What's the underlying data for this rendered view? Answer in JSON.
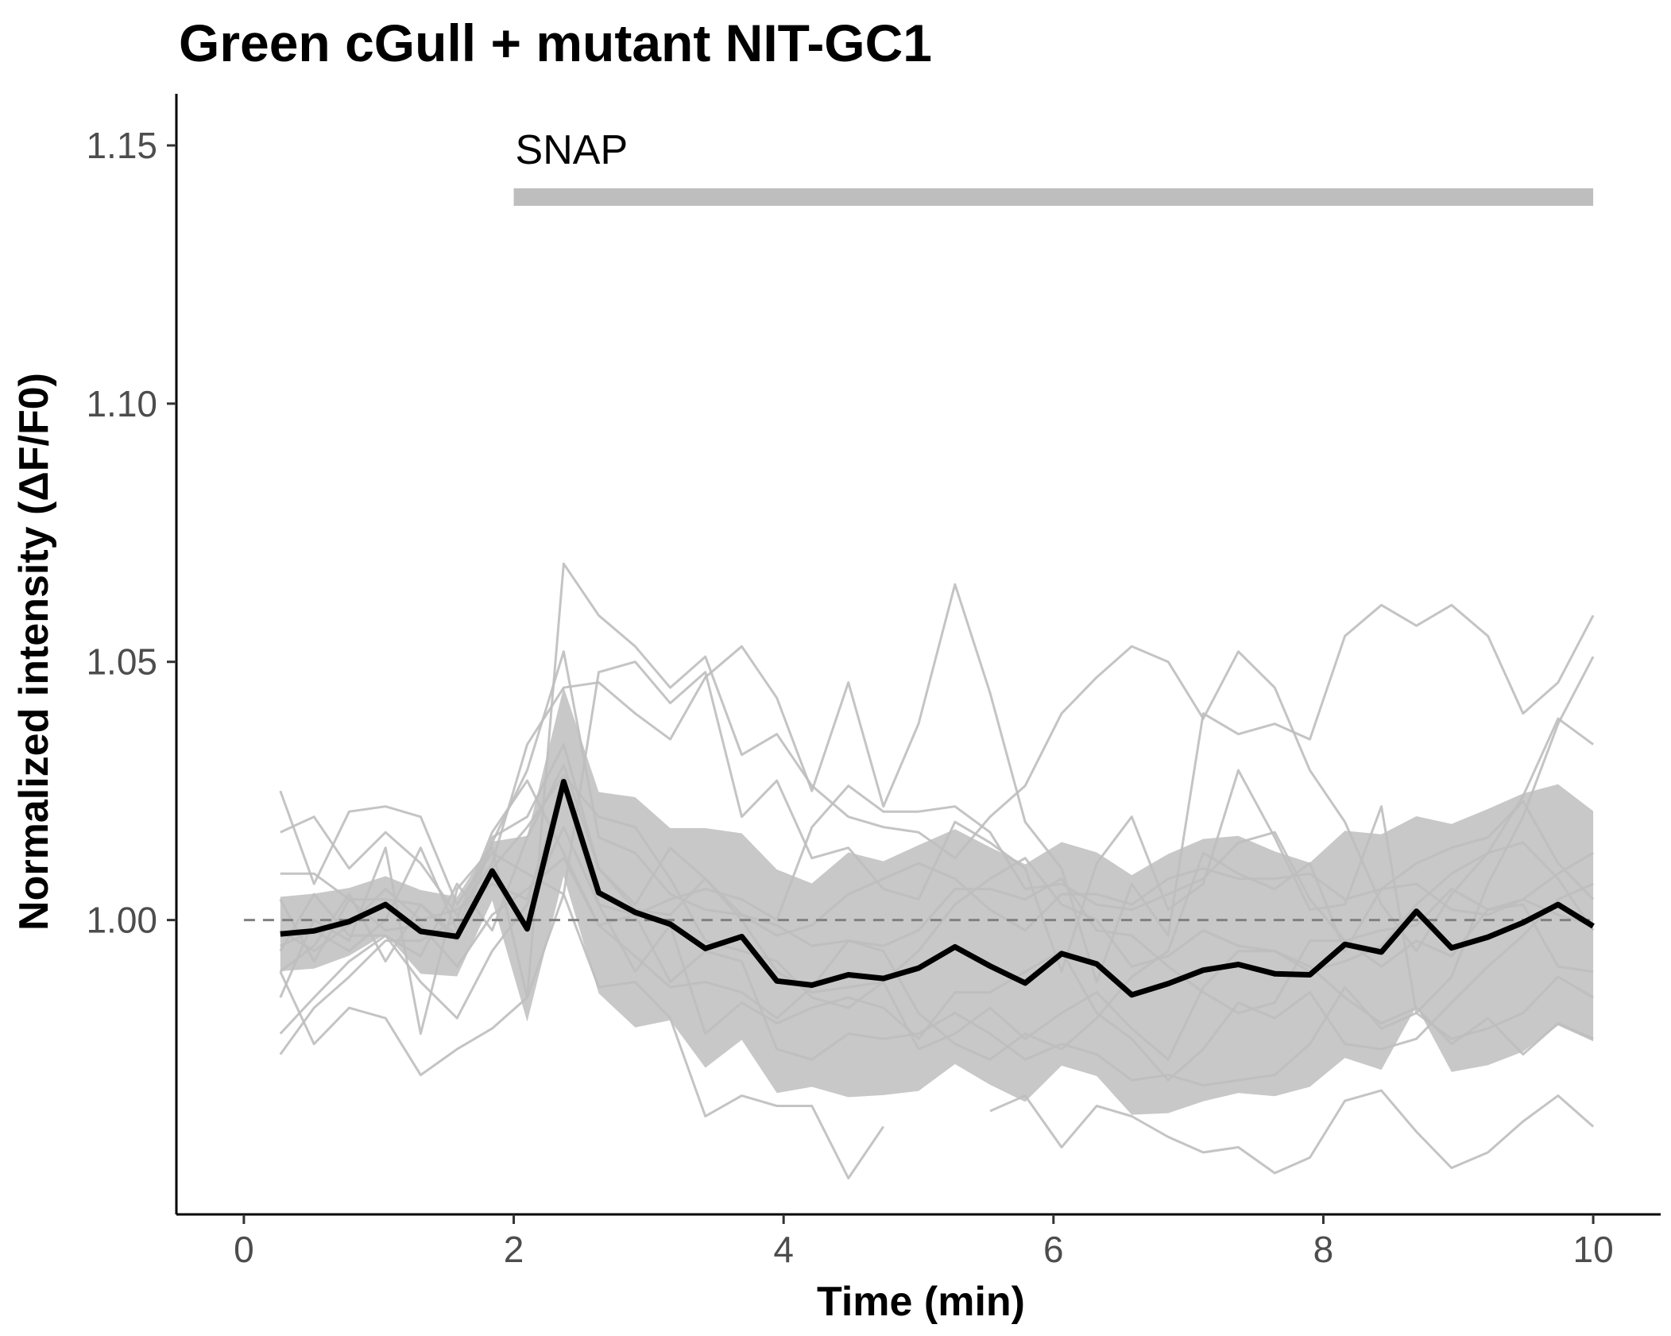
{
  "chart_data": {
    "type": "line",
    "title": "Green cGull + mutant NIT-GC1",
    "xlabel": "Time (min)",
    "ylabel": "Normalized intensity (ΔF/F0)",
    "xlim": [
      -0.5,
      10.5
    ],
    "ylim": [
      0.943,
      1.16
    ],
    "xticks": [
      0,
      2,
      4,
      6,
      8,
      10
    ],
    "xtick_labels": [
      "0",
      "2",
      "4",
      "6",
      "8",
      "10"
    ],
    "yticks": [
      1.0,
      1.05,
      1.1,
      1.15
    ],
    "ytick_labels": [
      "1.00",
      "1.05",
      "1.10",
      "1.15"
    ],
    "grid": false,
    "legend": "none",
    "reference_line": {
      "y": 1.0,
      "style": "dashed",
      "color": "#808080"
    },
    "annotation": {
      "label": "SNAP",
      "x_start": 2,
      "x_end": 10,
      "y": 1.14,
      "color": "#bebebe"
    },
    "x": [
      0.27,
      0.52,
      0.78,
      1.05,
      1.31,
      1.58,
      1.84,
      2.1,
      2.37,
      2.63,
      2.9,
      3.16,
      3.42,
      3.69,
      3.95,
      4.21,
      4.48,
      4.74,
      5.0,
      5.27,
      5.53,
      5.79,
      6.06,
      6.32,
      6.58,
      6.85,
      7.11,
      7.37,
      7.64,
      7.9,
      8.16,
      8.43,
      8.69,
      8.95,
      9.22,
      9.48,
      9.74,
      10.0
    ],
    "mean": {
      "color": "#000000",
      "values": [
        0.9973,
        0.9979,
        0.9997,
        1.003,
        0.9978,
        0.9968,
        1.0095,
        0.9983,
        1.0268,
        1.0053,
        1.0015,
        0.9992,
        0.9945,
        0.9968,
        0.9882,
        0.9874,
        0.9894,
        0.9887,
        0.9907,
        0.9948,
        0.9911,
        0.9878,
        0.9935,
        0.9915,
        0.9855,
        0.9877,
        0.9903,
        0.9914,
        0.9896,
        0.9894,
        0.9953,
        0.9938,
        1.0017,
        0.9946,
        0.9967,
        0.9995,
        1.003,
        0.9988
      ]
    },
    "band": {
      "color": "#bebebe",
      "upper": [
        1.0045,
        1.0051,
        1.0062,
        1.0085,
        1.0058,
        1.0045,
        1.0152,
        1.0163,
        1.0451,
        1.0248,
        1.0238,
        1.0178,
        1.0178,
        1.0168,
        1.0098,
        1.0071,
        1.0131,
        1.0114,
        1.0145,
        1.0176,
        1.0141,
        1.0108,
        1.0151,
        1.0131,
        1.0087,
        1.0128,
        1.0157,
        1.0163,
        1.0133,
        1.0111,
        1.0173,
        1.0166,
        1.0201,
        1.0186,
        1.0215,
        1.0245,
        1.0263,
        1.0211
      ],
      "lower": [
        0.9901,
        0.9906,
        0.9931,
        0.9973,
        0.9896,
        0.9891,
        1.0038,
        0.9803,
        1.0085,
        0.9858,
        0.9792,
        0.9806,
        0.9714,
        0.9768,
        0.9665,
        0.9677,
        0.9657,
        0.9661,
        0.9669,
        0.9721,
        0.9681,
        0.9648,
        0.9718,
        0.9698,
        0.9623,
        0.9626,
        0.9649,
        0.9665,
        0.9659,
        0.9677,
        0.9733,
        0.971,
        0.9833,
        0.9706,
        0.9719,
        0.9745,
        0.9796,
        0.9765
      ]
    },
    "traces": {
      "color": "#bebebe",
      "series": [
        [
          0.985,
          1.0,
          0.996,
          1.014,
          0.978,
          1.006,
          1.014,
          0.985,
          1.005,
          1.048,
          1.05,
          1.042,
          1.048,
          1.02,
          1.027,
          1.012,
          1.014,
          1.006,
          1.004,
          1.019,
          1.015,
          1.01,
          0.99,
          1.011,
          1.02,
          1.002,
          1.007,
          1.029,
          1.016,
          1.002,
          1.003,
          1.022,
          0.982,
          0.989,
          1.007,
          1.02,
          1.038,
          1.051
        ],
        [
          0.99,
          0.995,
          1.005,
          0.992,
          1.003,
          0.997,
          1.01,
          1.018,
          1.028,
          1.02,
          1.018,
          1.008,
          0.996,
          0.994,
          0.992,
          0.985,
          0.983,
          0.988,
          0.975,
          0.978,
          0.983,
          0.977,
          0.982,
          0.986,
          0.979,
          0.973,
          0.987,
          0.994,
          0.994,
          0.991,
          0.985,
          0.98,
          0.983,
          0.976,
          0.981,
          0.974,
          0.98,
          0.977
        ],
        [
          0.995,
          0.998,
          0.994,
          1.0,
          1.014,
          0.998,
          1.016,
          1.02,
          1.034,
          1.01,
          1.003,
          1.014,
          1.008,
          1.001,
          0.999,
          0.995,
          0.996,
          0.994,
          0.982,
          0.976,
          0.973,
          0.978,
          0.975,
          0.981,
          0.989,
          0.994,
          1.013,
          1.009,
          1.006,
          1.011,
          0.994,
          1.006,
          1.011,
          1.014,
          1.016,
          1.023,
          1.011,
          1.004
        ],
        [
          1.009,
          1.009,
          1.004,
          0.998,
          0.999,
          0.991,
          1.001,
          1.006,
          1.012,
          0.999,
          0.993,
          0.987,
          0.988,
          0.986,
          0.981,
          0.987,
          0.996,
          0.995,
          0.998,
          1.006,
          1.006,
          1.004,
          1.008,
          0.998,
          0.997,
          0.991,
          0.986,
          0.982,
          0.984,
          0.996,
          0.996,
          0.991,
          0.996,
          0.993,
          1.002,
          1.003,
          0.991,
          0.99
        ],
        [
          1.025,
          1.007,
          1.021,
          1.022,
          1.02,
          1.003,
          1.013,
          1.009,
          1.005,
          0.987,
          0.988,
          0.981,
          0.962,
          0.966,
          0.964,
          0.964,
          0.95,
          0.96,
          null,
          null,
          0.963,
          0.966,
          0.956,
          0.964,
          0.962,
          0.958,
          0.955,
          0.956,
          0.951,
          0.954,
          0.965,
          0.967,
          0.959,
          0.952,
          0.955,
          0.961,
          0.966,
          0.96
        ],
        [
          1.017,
          1.02,
          1.01,
          1.017,
          1.011,
          1.001,
          1.011,
          1.034,
          1.045,
          1.046,
          1.04,
          1.035,
          1.047,
          1.053,
          1.043,
          1.025,
          1.046,
          1.022,
          1.038,
          1.065,
          1.044,
          1.019,
          1.01,
          0.988,
          1.007,
          0.997,
          1.04,
          1.036,
          1.038,
          1.035,
          1.055,
          1.061,
          1.057,
          1.061,
          1.055,
          1.04,
          1.046,
          1.059
        ],
        [
          0.99,
          0.976,
          0.983,
          0.981,
          0.97,
          0.975,
          0.979,
          0.985,
          1.069,
          1.059,
          1.053,
          1.045,
          1.051,
          1.032,
          1.036,
          1.026,
          1.02,
          1.018,
          1.017,
          1.012,
          1.02,
          1.026,
          1.04,
          1.047,
          1.053,
          1.05,
          1.039,
          1.052,
          1.045,
          1.029,
          1.019,
          1.003,
          0.994,
          1.005,
          1.013,
          1.024,
          1.039,
          1.034
        ],
        [
          0.974,
          0.983,
          0.989,
          0.996,
          0.996,
          1.0,
          1.017,
          1.027,
          1.013,
          0.999,
          1.001,
          1.004,
          1.006,
          1.004,
          1.0,
          1.018,
          1.026,
          1.021,
          1.021,
          1.022,
          1.017,
          1.006,
          1.007,
          1.003,
          1.002,
          1.005,
          1.008,
          1.015,
          1.017,
          1.004,
          0.996,
          0.998,
          0.999,
          1.006,
          1.002,
          1.004,
          1.009,
          1.013
        ],
        [
          0.978,
          0.985,
          0.992,
          0.997,
          0.988,
          0.981,
          0.994,
          1.003,
          1.018,
          1.003,
          0.99,
          0.999,
          0.978,
          0.984,
          0.98,
          0.983,
          0.985,
          0.983,
          0.977,
          0.986,
          0.986,
          0.99,
          0.994,
          0.982,
          0.977,
          0.969,
          0.975,
          0.984,
          0.981,
          0.986,
          0.976,
          0.975,
          0.977,
          0.984,
          0.991,
          0.997,
          1.004,
          1.007
        ],
        [
          0.998,
          0.994,
          0.999,
          1.006,
          1.0,
          1.002,
          1.007,
          1.004,
          1.026,
          1.003,
          1.001,
          0.988,
          0.994,
          0.992,
          0.975,
          0.973,
          0.978,
          0.977,
          0.978,
          0.982,
          0.978,
          0.973,
          0.976,
          0.974,
          0.969,
          0.97,
          0.968,
          0.969,
          0.97,
          0.976,
          0.987,
          0.979,
          0.982,
          0.977,
          0.979,
          0.982,
          0.989,
          0.985
        ],
        [
          1.004,
          0.992,
          1.004,
          1.004,
          1.003,
          0.996,
          1.015,
          1.029,
          1.052,
          1.016,
          1.013,
          1.005,
          1.002,
          1.001,
          0.997,
          0.999,
          1.005,
          1.008,
          1.011,
          1.008,
          1.002,
          0.998,
          1.005,
          1.005,
          1.003,
          1.008,
          1.01,
          1.008,
          1.008,
          1.009,
          1.004,
          1.006,
          1.007,
          1.002,
          1.001,
          1.004,
          1.001,
          0.999
        ],
        [
          0.994,
          1.005,
          0.997,
          0.997,
          0.993,
          1.007,
          0.998,
          1.016,
          1.03,
          1.01,
          1.002,
          1.001,
          1.008,
          1.0,
          0.99,
          0.986,
          0.987,
          0.988,
          0.994,
          1.003,
          1.008,
          1.012,
          1.003,
          1.0,
          0.991,
          0.993,
          0.998,
          0.995,
          0.994,
          0.99,
          0.992,
          0.995,
          1.003,
          1.009,
          1.013,
          1.015,
          1.008,
          0.998
        ]
      ]
    }
  }
}
